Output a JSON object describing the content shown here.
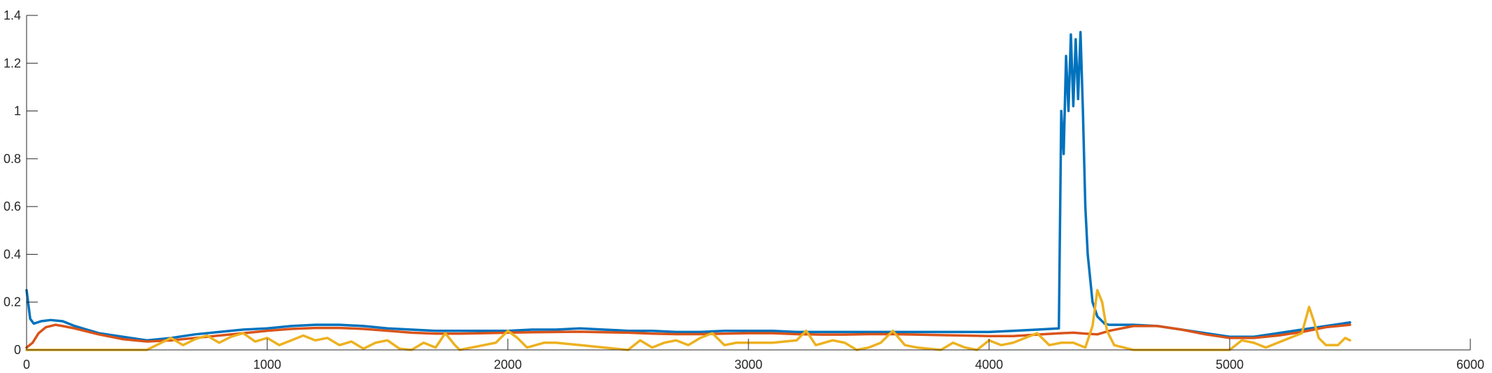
{
  "chart_data": {
    "type": "line",
    "title": "",
    "xlabel": "",
    "ylabel": "",
    "xlim": [
      0,
      6000
    ],
    "ylim": [
      0,
      1.4
    ],
    "x_ticks": [
      0,
      1000,
      2000,
      3000,
      4000,
      5000,
      6000
    ],
    "y_ticks": [
      0,
      0.2,
      0.4,
      0.6,
      0.8,
      1,
      1.2,
      1.4
    ],
    "x_tick_labels": [
      "0",
      "1000",
      "2000",
      "3000",
      "4000",
      "5000",
      "6000"
    ],
    "y_tick_labels": [
      "0",
      "0.2",
      "0.4",
      "0.6",
      "0.8",
      "1",
      "1.2",
      "1.4"
    ],
    "grid": false,
    "legend": "none",
    "series": [
      {
        "color": "#0072BD",
        "points": [
          [
            0,
            0.25
          ],
          [
            15,
            0.13
          ],
          [
            30,
            0.11
          ],
          [
            60,
            0.12
          ],
          [
            100,
            0.125
          ],
          [
            150,
            0.12
          ],
          [
            200,
            0.1
          ],
          [
            300,
            0.07
          ],
          [
            400,
            0.055
          ],
          [
            500,
            0.04
          ],
          [
            600,
            0.05
          ],
          [
            700,
            0.065
          ],
          [
            800,
            0.075
          ],
          [
            900,
            0.085
          ],
          [
            1000,
            0.09
          ],
          [
            1100,
            0.1
          ],
          [
            1200,
            0.105
          ],
          [
            1300,
            0.105
          ],
          [
            1400,
            0.1
          ],
          [
            1500,
            0.09
          ],
          [
            1600,
            0.085
          ],
          [
            1700,
            0.08
          ],
          [
            1800,
            0.08
          ],
          [
            1900,
            0.08
          ],
          [
            2000,
            0.08
          ],
          [
            2100,
            0.085
          ],
          [
            2200,
            0.085
          ],
          [
            2300,
            0.09
          ],
          [
            2400,
            0.085
          ],
          [
            2500,
            0.08
          ],
          [
            2600,
            0.08
          ],
          [
            2700,
            0.075
          ],
          [
            2800,
            0.075
          ],
          [
            2900,
            0.08
          ],
          [
            3000,
            0.08
          ],
          [
            3100,
            0.08
          ],
          [
            3200,
            0.075
          ],
          [
            3300,
            0.075
          ],
          [
            3400,
            0.075
          ],
          [
            3500,
            0.075
          ],
          [
            3600,
            0.075
          ],
          [
            3700,
            0.075
          ],
          [
            3800,
            0.075
          ],
          [
            3900,
            0.075
          ],
          [
            4000,
            0.075
          ],
          [
            4100,
            0.08
          ],
          [
            4200,
            0.085
          ],
          [
            4290,
            0.09
          ],
          [
            4300,
            1.0
          ],
          [
            4310,
            0.82
          ],
          [
            4320,
            1.23
          ],
          [
            4330,
            1.0
          ],
          [
            4340,
            1.32
          ],
          [
            4350,
            1.02
          ],
          [
            4360,
            1.3
          ],
          [
            4370,
            1.05
          ],
          [
            4380,
            1.33
          ],
          [
            4390,
            1.0
          ],
          [
            4400,
            0.6
          ],
          [
            4410,
            0.4
          ],
          [
            4430,
            0.2
          ],
          [
            4450,
            0.14
          ],
          [
            4480,
            0.11
          ],
          [
            4500,
            0.105
          ],
          [
            4600,
            0.105
          ],
          [
            4700,
            0.1
          ],
          [
            4800,
            0.085
          ],
          [
            4900,
            0.07
          ],
          [
            5000,
            0.055
          ],
          [
            5100,
            0.055
          ],
          [
            5200,
            0.07
          ],
          [
            5300,
            0.085
          ],
          [
            5400,
            0.1
          ],
          [
            5500,
            0.115
          ]
        ]
      },
      {
        "color": "#D95319",
        "points": [
          [
            0,
            0.01
          ],
          [
            25,
            0.03
          ],
          [
            50,
            0.07
          ],
          [
            80,
            0.095
          ],
          [
            120,
            0.105
          ],
          [
            150,
            0.1
          ],
          [
            200,
            0.09
          ],
          [
            300,
            0.065
          ],
          [
            400,
            0.045
          ],
          [
            500,
            0.035
          ],
          [
            600,
            0.04
          ],
          [
            700,
            0.05
          ],
          [
            800,
            0.06
          ],
          [
            900,
            0.07
          ],
          [
            1000,
            0.08
          ],
          [
            1100,
            0.088
          ],
          [
            1200,
            0.092
          ],
          [
            1300,
            0.092
          ],
          [
            1400,
            0.088
          ],
          [
            1500,
            0.08
          ],
          [
            1600,
            0.072
          ],
          [
            1700,
            0.068
          ],
          [
            1800,
            0.068
          ],
          [
            1900,
            0.07
          ],
          [
            2000,
            0.072
          ],
          [
            2100,
            0.074
          ],
          [
            2200,
            0.075
          ],
          [
            2300,
            0.076
          ],
          [
            2400,
            0.074
          ],
          [
            2500,
            0.072
          ],
          [
            2600,
            0.068
          ],
          [
            2700,
            0.066
          ],
          [
            2800,
            0.066
          ],
          [
            2900,
            0.068
          ],
          [
            3000,
            0.07
          ],
          [
            3100,
            0.07
          ],
          [
            3200,
            0.066
          ],
          [
            3300,
            0.064
          ],
          [
            3400,
            0.064
          ],
          [
            3500,
            0.066
          ],
          [
            3600,
            0.066
          ],
          [
            3700,
            0.064
          ],
          [
            3800,
            0.062
          ],
          [
            3900,
            0.06
          ],
          [
            4000,
            0.058
          ],
          [
            4100,
            0.058
          ],
          [
            4200,
            0.064
          ],
          [
            4300,
            0.07
          ],
          [
            4350,
            0.072
          ],
          [
            4400,
            0.068
          ],
          [
            4450,
            0.065
          ],
          [
            4500,
            0.08
          ],
          [
            4600,
            0.1
          ],
          [
            4700,
            0.1
          ],
          [
            4800,
            0.085
          ],
          [
            4900,
            0.065
          ],
          [
            5000,
            0.05
          ],
          [
            5100,
            0.05
          ],
          [
            5200,
            0.06
          ],
          [
            5300,
            0.075
          ],
          [
            5400,
            0.095
          ],
          [
            5500,
            0.105
          ]
        ]
      },
      {
        "color": "#EDB120",
        "points": [
          [
            0,
            0
          ],
          [
            500,
            0
          ],
          [
            520,
            0.01
          ],
          [
            560,
            0.03
          ],
          [
            600,
            0.05
          ],
          [
            650,
            0.02
          ],
          [
            700,
            0.045
          ],
          [
            750,
            0.06
          ],
          [
            800,
            0.03
          ],
          [
            850,
            0.055
          ],
          [
            900,
            0.07
          ],
          [
            950,
            0.035
          ],
          [
            1000,
            0.05
          ],
          [
            1050,
            0.02
          ],
          [
            1100,
            0.04
          ],
          [
            1150,
            0.06
          ],
          [
            1200,
            0.04
          ],
          [
            1250,
            0.05
          ],
          [
            1300,
            0.02
          ],
          [
            1350,
            0.035
          ],
          [
            1400,
            0.005
          ],
          [
            1450,
            0.03
          ],
          [
            1500,
            0.04
          ],
          [
            1550,
            0.005
          ],
          [
            1600,
            0.0
          ],
          [
            1650,
            0.03
          ],
          [
            1700,
            0.01
          ],
          [
            1740,
            0.07
          ],
          [
            1780,
            0.02
          ],
          [
            1800,
            0.0
          ],
          [
            1900,
            0.02
          ],
          [
            1950,
            0.03
          ],
          [
            2000,
            0.08
          ],
          [
            2040,
            0.05
          ],
          [
            2080,
            0.01
          ],
          [
            2150,
            0.03
          ],
          [
            2200,
            0.03
          ],
          [
            2300,
            0.02
          ],
          [
            2400,
            0.01
          ],
          [
            2500,
            0.0
          ],
          [
            2550,
            0.04
          ],
          [
            2600,
            0.01
          ],
          [
            2650,
            0.03
          ],
          [
            2700,
            0.04
          ],
          [
            2750,
            0.02
          ],
          [
            2800,
            0.05
          ],
          [
            2850,
            0.07
          ],
          [
            2900,
            0.02
          ],
          [
            2950,
            0.03
          ],
          [
            3000,
            0.03
          ],
          [
            3100,
            0.03
          ],
          [
            3200,
            0.04
          ],
          [
            3240,
            0.08
          ],
          [
            3280,
            0.02
          ],
          [
            3350,
            0.04
          ],
          [
            3400,
            0.03
          ],
          [
            3450,
            0.0
          ],
          [
            3500,
            0.01
          ],
          [
            3550,
            0.03
          ],
          [
            3600,
            0.08
          ],
          [
            3650,
            0.02
          ],
          [
            3700,
            0.01
          ],
          [
            3800,
            0.0
          ],
          [
            3850,
            0.03
          ],
          [
            3900,
            0.01
          ],
          [
            3950,
            0.0
          ],
          [
            4000,
            0.04
          ],
          [
            4050,
            0.02
          ],
          [
            4100,
            0.03
          ],
          [
            4150,
            0.05
          ],
          [
            4200,
            0.07
          ],
          [
            4250,
            0.02
          ],
          [
            4300,
            0.03
          ],
          [
            4350,
            0.03
          ],
          [
            4400,
            0.01
          ],
          [
            4430,
            0.1
          ],
          [
            4450,
            0.25
          ],
          [
            4470,
            0.2
          ],
          [
            4490,
            0.08
          ],
          [
            4520,
            0.02
          ],
          [
            4600,
            0.0
          ],
          [
            4700,
            0.0
          ],
          [
            4800,
            0.0
          ],
          [
            4900,
            0.0
          ],
          [
            5000,
            0.0
          ],
          [
            5050,
            0.04
          ],
          [
            5100,
            0.03
          ],
          [
            5150,
            0.01
          ],
          [
            5200,
            0.03
          ],
          [
            5250,
            0.05
          ],
          [
            5300,
            0.07
          ],
          [
            5330,
            0.18
          ],
          [
            5350,
            0.12
          ],
          [
            5370,
            0.05
          ],
          [
            5400,
            0.02
          ],
          [
            5450,
            0.02
          ],
          [
            5480,
            0.05
          ],
          [
            5500,
            0.04
          ]
        ]
      }
    ]
  }
}
